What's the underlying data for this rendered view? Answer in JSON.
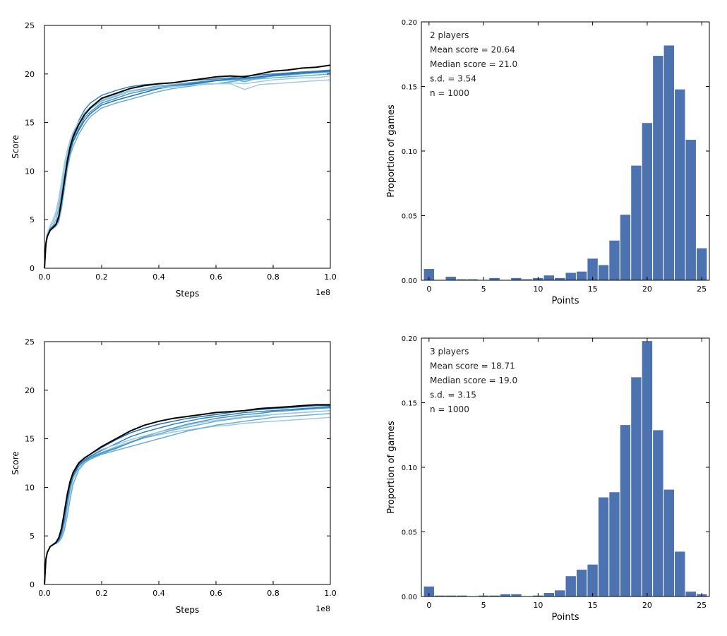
{
  "colors": {
    "curve_shades": [
      "#c6dbef",
      "#9ecae1",
      "#6baed6",
      "#4292c6",
      "#2171b5",
      "#3182bd",
      "#6baed6",
      "#9ecae1"
    ],
    "best_curve": "#000000",
    "bar_fill": "#4c72b0",
    "axis": "#000000"
  },
  "chart_data": [
    {
      "type": "line",
      "xlabel": "Steps",
      "ylabel": "Score",
      "x_offset_label": "1e8",
      "xlim": [
        0,
        1.0
      ],
      "ylim": [
        0,
        25
      ],
      "x_ticks": [
        0.0,
        0.2,
        0.4,
        0.6,
        0.8,
        1.0
      ],
      "x_tick_labels": [
        "0.0",
        "0.2",
        "0.4",
        "0.6",
        "0.8",
        "1.0"
      ],
      "y_ticks": [
        0,
        5,
        10,
        15,
        20,
        25
      ],
      "y_tick_labels": [
        "0",
        "5",
        "10",
        "15",
        "20",
        "25"
      ],
      "grid": false,
      "x": [
        0,
        0.005,
        0.01,
        0.02,
        0.03,
        0.04,
        0.05,
        0.06,
        0.07,
        0.08,
        0.09,
        0.1,
        0.12,
        0.14,
        0.16,
        0.2,
        0.25,
        0.3,
        0.35,
        0.4,
        0.45,
        0.5,
        0.55,
        0.6,
        0.65,
        0.7,
        0.75,
        0.8,
        0.85,
        0.9,
        0.95,
        1.0
      ],
      "series": [
        {
          "values": [
            0,
            2.5,
            3.3,
            3.9,
            4.2,
            4.5,
            5.3,
            7.0,
            9.0,
            11.0,
            12.5,
            13.5,
            14.8,
            15.8,
            16.5,
            17.5,
            18.0,
            18.5,
            18.8,
            19.0,
            19.1,
            19.3,
            19.5,
            19.7,
            19.8,
            19.7,
            20.0,
            20.3,
            20.4,
            20.6,
            20.7,
            20.9
          ]
        },
        {
          "values": [
            0,
            2.6,
            3.4,
            4.2,
            4.7,
            5.5,
            6.8,
            8.5,
            10.3,
            12.0,
            13.0,
            13.8,
            15.0,
            16.0,
            16.6,
            17.4,
            17.9,
            18.3,
            18.5,
            18.7,
            18.8,
            18.9,
            19.0,
            19.0,
            19.1,
            19.0,
            19.2,
            19.4,
            19.5,
            19.6,
            19.6,
            19.8
          ]
        },
        {
          "values": [
            0,
            2.5,
            3.3,
            4.0,
            4.4,
            5.0,
            6.2,
            7.8,
            9.6,
            11.4,
            12.6,
            13.5,
            14.8,
            15.8,
            16.4,
            17.2,
            17.7,
            18.2,
            18.5,
            18.8,
            18.9,
            19.1,
            19.2,
            19.4,
            19.5,
            19.2,
            19.6,
            19.8,
            19.9,
            20.0,
            20.1,
            20.2
          ]
        },
        {
          "values": [
            0,
            2.6,
            3.5,
            4.1,
            4.3,
            4.6,
            5.5,
            7.2,
            9.2,
            11.2,
            12.3,
            13.2,
            14.4,
            15.5,
            16.1,
            17.0,
            17.5,
            18.0,
            18.3,
            18.6,
            18.8,
            19.0,
            19.2,
            19.3,
            19.4,
            19.5,
            19.6,
            19.8,
            19.9,
            20.1,
            20.2,
            20.3
          ]
        },
        {
          "values": [
            0,
            2.4,
            3.2,
            3.9,
            4.2,
            4.4,
            5.0,
            6.6,
            8.6,
            10.7,
            12.0,
            13.0,
            14.2,
            15.2,
            15.9,
            16.8,
            17.3,
            17.7,
            18.1,
            18.5,
            18.7,
            18.9,
            19.1,
            19.3,
            19.5,
            19.6,
            19.7,
            19.9,
            20.0,
            20.1,
            20.2,
            20.3
          ]
        },
        {
          "values": [
            0,
            2.5,
            3.3,
            4.0,
            4.3,
            4.5,
            5.2,
            6.9,
            9.0,
            11.0,
            12.5,
            13.6,
            15.2,
            16.3,
            17.0,
            17.8,
            18.3,
            18.7,
            18.9,
            19.0,
            19.1,
            19.3,
            19.4,
            19.5,
            19.6,
            19.8,
            19.9,
            20.0,
            20.1,
            20.2,
            20.3,
            20.4
          ]
        },
        {
          "values": [
            0,
            2.4,
            3.2,
            3.9,
            4.1,
            4.3,
            4.8,
            6.2,
            8.2,
            10.2,
            11.6,
            12.5,
            13.8,
            14.8,
            15.6,
            16.5,
            17.0,
            17.4,
            17.8,
            18.2,
            18.5,
            18.7,
            18.9,
            19.0,
            19.2,
            19.4,
            19.5,
            19.6,
            19.7,
            19.8,
            19.9,
            20.0
          ]
        },
        {
          "values": [
            0,
            2.7,
            3.6,
            4.4,
            5.0,
            5.8,
            7.2,
            9.0,
            10.8,
            12.2,
            13.2,
            14.0,
            15.1,
            15.9,
            16.5,
            17.3,
            17.8,
            18.2,
            18.4,
            18.6,
            18.7,
            18.8,
            18.9,
            19.0,
            19.0,
            18.4,
            18.9,
            19.0,
            19.1,
            19.2,
            19.3,
            19.4
          ]
        }
      ],
      "highlight_series": 0
    },
    {
      "type": "bar",
      "xlabel": "Points",
      "ylabel": "Proportion of games",
      "xlim": [
        -0.7,
        25.7
      ],
      "ylim": [
        0,
        0.2
      ],
      "x_ticks": [
        0,
        5,
        10,
        15,
        20,
        25
      ],
      "x_tick_labels": [
        "0",
        "5",
        "10",
        "15",
        "20",
        "25"
      ],
      "y_ticks": [
        0,
        0.05,
        0.1,
        0.15,
        0.2
      ],
      "y_tick_labels": [
        "0.00",
        "0.05",
        "0.10",
        "0.15",
        "0.20"
      ],
      "annotations": [
        "2 players",
        "Mean score = 20.64",
        "Median score = 21.0",
        "s.d. = 3.54",
        "n = 1000"
      ],
      "categories": [
        0,
        1,
        2,
        3,
        4,
        5,
        6,
        7,
        8,
        9,
        10,
        11,
        12,
        13,
        14,
        15,
        16,
        17,
        18,
        19,
        20,
        21,
        22,
        23,
        24,
        25
      ],
      "values": [
        0.009,
        0.0,
        0.003,
        0.001,
        0.001,
        0.0,
        0.002,
        0.0,
        0.002,
        0.001,
        0.002,
        0.004,
        0.002,
        0.006,
        0.007,
        0.017,
        0.012,
        0.031,
        0.051,
        0.089,
        0.122,
        0.174,
        0.182,
        0.148,
        0.109,
        0.025
      ]
    },
    {
      "type": "line",
      "xlabel": "Steps",
      "ylabel": "Score",
      "x_offset_label": "1e8",
      "xlim": [
        0,
        1.0
      ],
      "ylim": [
        0,
        25
      ],
      "x_ticks": [
        0.0,
        0.2,
        0.4,
        0.6,
        0.8,
        1.0
      ],
      "x_tick_labels": [
        "0.0",
        "0.2",
        "0.4",
        "0.6",
        "0.8",
        "1.0"
      ],
      "y_ticks": [
        0,
        5,
        10,
        15,
        20,
        25
      ],
      "y_tick_labels": [
        "0",
        "5",
        "10",
        "15",
        "20",
        "25"
      ],
      "grid": false,
      "x": [
        0,
        0.005,
        0.01,
        0.02,
        0.03,
        0.04,
        0.05,
        0.06,
        0.07,
        0.08,
        0.09,
        0.1,
        0.12,
        0.14,
        0.16,
        0.2,
        0.25,
        0.3,
        0.35,
        0.4,
        0.45,
        0.5,
        0.55,
        0.6,
        0.65,
        0.7,
        0.75,
        0.8,
        0.85,
        0.9,
        0.95,
        1.0
      ],
      "series": [
        {
          "values": [
            0,
            2.6,
            3.3,
            3.9,
            4.1,
            4.3,
            4.8,
            5.8,
            7.5,
            9.3,
            10.6,
            11.5,
            12.5,
            13.0,
            13.4,
            14.2,
            15.0,
            15.8,
            16.4,
            16.8,
            17.1,
            17.3,
            17.5,
            17.7,
            17.8,
            17.9,
            18.1,
            18.2,
            18.3,
            18.4,
            18.5,
            18.5
          ]
        },
        {
          "values": [
            0,
            2.6,
            3.3,
            3.9,
            4.1,
            4.2,
            4.4,
            4.9,
            6.0,
            7.8,
            9.5,
            10.8,
            12.0,
            12.6,
            13.0,
            13.6,
            14.2,
            14.7,
            15.1,
            15.4,
            15.7,
            15.9,
            16.1,
            16.3,
            16.4,
            16.6,
            16.7,
            16.8,
            16.9,
            17.0,
            17.1,
            17.2
          ]
        },
        {
          "values": [
            0,
            2.6,
            3.3,
            3.9,
            4.1,
            4.3,
            4.7,
            5.6,
            7.2,
            9.0,
            10.4,
            11.3,
            12.3,
            12.8,
            13.1,
            13.6,
            14.1,
            14.6,
            15.1,
            15.5,
            15.9,
            16.2,
            16.5,
            16.8,
            17.0,
            17.2,
            17.3,
            17.5,
            17.6,
            17.7,
            17.8,
            17.9
          ]
        },
        {
          "values": [
            0,
            2.6,
            3.3,
            3.9,
            4.1,
            4.2,
            4.5,
            5.2,
            6.5,
            8.4,
            10.0,
            11.1,
            12.2,
            12.7,
            13.0,
            13.5,
            14.0,
            14.6,
            15.2,
            15.7,
            16.1,
            16.5,
            16.8,
            17.1,
            17.3,
            17.5,
            17.6,
            17.8,
            17.9,
            18.0,
            18.1,
            18.2
          ]
        },
        {
          "values": [
            0,
            2.6,
            3.3,
            3.9,
            4.1,
            4.3,
            4.7,
            5.5,
            7.0,
            8.8,
            10.3,
            11.3,
            12.4,
            13.0,
            13.4,
            14.1,
            14.9,
            15.6,
            16.1,
            16.5,
            16.8,
            17.1,
            17.3,
            17.5,
            17.7,
            17.9,
            18.0,
            18.1,
            18.2,
            18.3,
            18.4,
            18.4
          ]
        },
        {
          "values": [
            0,
            2.6,
            3.3,
            3.9,
            4.1,
            4.3,
            4.6,
            5.4,
            6.8,
            8.6,
            10.1,
            11.1,
            12.2,
            12.8,
            13.2,
            13.8,
            14.5,
            15.2,
            15.7,
            16.1,
            16.5,
            16.8,
            17.1,
            17.3,
            17.5,
            17.7,
            17.8,
            17.9,
            18.0,
            18.1,
            18.2,
            18.3
          ]
        },
        {
          "values": [
            0,
            2.6,
            3.3,
            3.9,
            4.1,
            4.2,
            4.4,
            4.8,
            5.6,
            7.1,
            8.8,
            10.3,
            11.8,
            12.5,
            12.9,
            13.4,
            13.8,
            14.2,
            14.6,
            15.0,
            15.4,
            15.8,
            16.1,
            16.4,
            16.6,
            16.8,
            17.0,
            17.2,
            17.3,
            17.4,
            17.5,
            17.6
          ]
        },
        {
          "values": [
            0,
            2.6,
            3.3,
            3.9,
            4.2,
            4.4,
            4.9,
            5.9,
            7.6,
            9.4,
            10.7,
            11.6,
            12.6,
            13.1,
            13.4,
            13.9,
            14.4,
            14.9,
            15.3,
            15.7,
            16.0,
            16.4,
            16.7,
            16.9,
            17.1,
            17.3,
            17.4,
            17.5,
            17.6,
            17.7,
            17.8,
            17.9
          ]
        }
      ],
      "highlight_series": 0
    },
    {
      "type": "bar",
      "xlabel": "Points",
      "ylabel": "Proportion of games",
      "xlim": [
        -0.7,
        25.7
      ],
      "ylim": [
        0,
        0.2
      ],
      "x_ticks": [
        0,
        5,
        10,
        15,
        20,
        25
      ],
      "x_tick_labels": [
        "0",
        "5",
        "10",
        "15",
        "20",
        "25"
      ],
      "y_ticks": [
        0,
        0.05,
        0.1,
        0.15,
        0.2
      ],
      "y_tick_labels": [
        "0.00",
        "0.05",
        "0.10",
        "0.15",
        "0.20"
      ],
      "annotations": [
        "3 players",
        "Mean score = 18.71",
        "Median score = 19.0",
        "s.d. = 3.15",
        "n = 1000"
      ],
      "categories": [
        0,
        1,
        2,
        3,
        4,
        5,
        6,
        7,
        8,
        9,
        10,
        11,
        12,
        13,
        14,
        15,
        16,
        17,
        18,
        19,
        20,
        21,
        22,
        23,
        24,
        25
      ],
      "values": [
        0.008,
        0.001,
        0.001,
        0.001,
        0.0,
        0.001,
        0.001,
        0.002,
        0.002,
        0.0,
        0.001,
        0.003,
        0.005,
        0.016,
        0.021,
        0.025,
        0.077,
        0.081,
        0.133,
        0.17,
        0.198,
        0.129,
        0.083,
        0.035,
        0.004,
        0.002
      ]
    }
  ]
}
